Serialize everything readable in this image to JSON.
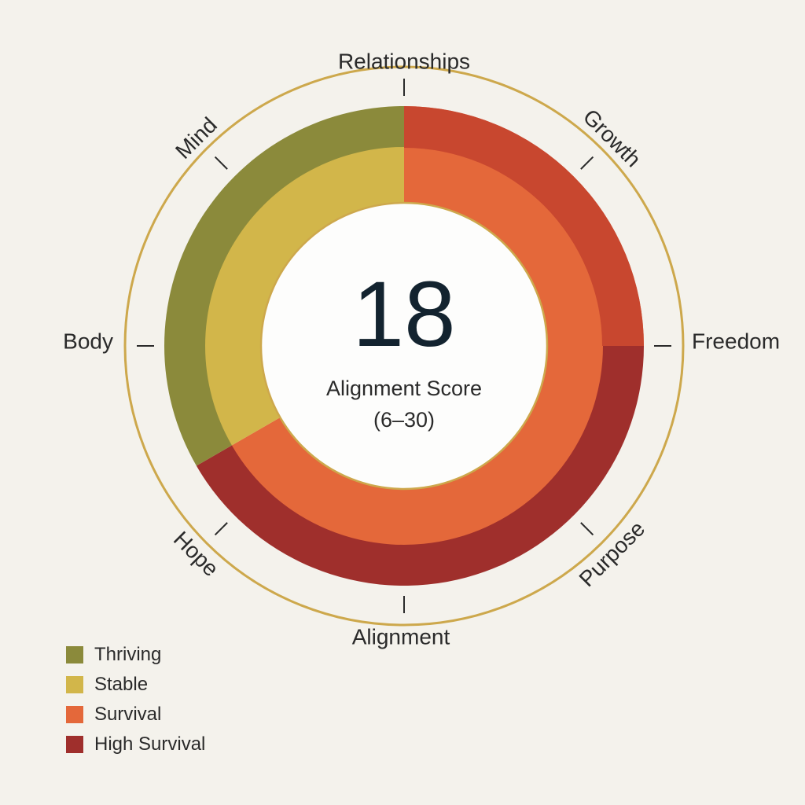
{
  "diagram": {
    "center_score": {
      "value": "18",
      "title": "Alignment Score",
      "range": "(6–30)"
    },
    "colors": {
      "thriving": "#8b8a3b",
      "stable": "#d2b64a",
      "survival": "#e4683a",
      "high_survival": "#9f2f2c",
      "ring_outline": "#cda84c"
    },
    "dimensions": [
      {
        "name": "Relationships",
        "angle_deg": 0
      },
      {
        "name": "Growth",
        "angle_deg": 45
      },
      {
        "name": "Freedom",
        "angle_deg": 90
      },
      {
        "name": "Purpose",
        "angle_deg": 135
      },
      {
        "name": "Alignment",
        "angle_deg": 180
      },
      {
        "name": "Hope",
        "angle_deg": 225
      },
      {
        "name": "Body",
        "angle_deg": 270
      },
      {
        "name": "Mind",
        "angle_deg": 315
      }
    ],
    "segments": [
      {
        "from_deg": 0,
        "to_deg": 90,
        "outer": "survival",
        "inner": "survival"
      },
      {
        "from_deg": 90,
        "to_deg": 240,
        "outer": "high_survival",
        "inner": "survival"
      },
      {
        "from_deg": 240,
        "to_deg": 360,
        "outer": "thriving",
        "inner": "stable"
      }
    ],
    "legend": [
      {
        "label": "Thriving",
        "color": "#8b8a3b"
      },
      {
        "label": "Stable",
        "color": "#d2b64a"
      },
      {
        "label": "Survival",
        "color": "#e4683a"
      },
      {
        "label": "High Survival",
        "color": "#9f2f2c"
      }
    ]
  }
}
